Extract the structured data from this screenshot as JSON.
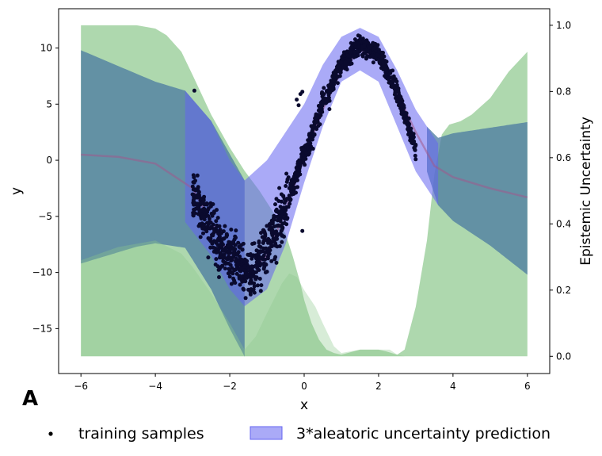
{
  "panel_label": "A",
  "chart_data": {
    "type": "scatter",
    "xlabel": "x",
    "ylabel": "y",
    "y2label": "Epistemic Uncertainty",
    "xlim": [
      -6.6,
      6.6
    ],
    "ylim": [
      -19.0,
      13.5
    ],
    "y2lim": [
      -0.052,
      1.05
    ],
    "xticks": [
      -6,
      -4,
      -2,
      0,
      2,
      4,
      6
    ],
    "yticks": [
      -15,
      -10,
      -5,
      0,
      5,
      10
    ],
    "y2ticks": [
      0.0,
      0.2,
      0.4,
      0.6,
      0.8,
      1.0
    ],
    "tick_labels": {
      "x": [
        "−6",
        "−4",
        "−2",
        "0",
        "2",
        "4",
        "6"
      ],
      "y": [
        "−15",
        "−10",
        "−5",
        "0",
        "5",
        "10"
      ],
      "y2": [
        "0.0",
        "0.2",
        "0.4",
        "0.6",
        "0.8",
        "1.0"
      ]
    },
    "legend": {
      "placement": "bottom",
      "entries": [
        "training samples",
        "3*aleatoric uncertainty prediction"
      ]
    },
    "colors": {
      "samples": "#0a0a2e",
      "aleatoric_band": "#6464f0",
      "epistemic_area": "#8cc88c",
      "mean_line": "#a05a8c"
    },
    "series": [
      {
        "name": "training samples",
        "kind": "scatter",
        "x_range": [
          -3.0,
          3.0
        ],
        "trend_x": [
          -3.0,
          -2.5,
          -2.0,
          -1.5,
          -1.0,
          -0.5,
          0.0,
          0.5,
          1.0,
          1.5,
          2.0,
          2.5,
          3.0
        ],
        "trend_y": [
          -3.0,
          -6.0,
          -8.5,
          -10.0,
          -8.0,
          -4.0,
          0.5,
          5.0,
          8.5,
          10.3,
          9.6,
          6.0,
          1.0
        ],
        "outliers": [
          [
            -2.95,
            6.2
          ],
          [
            -0.2,
            5.4
          ],
          [
            -0.15,
            4.9
          ],
          [
            -0.1,
            5.9
          ],
          [
            -0.05,
            6.1
          ],
          [
            -0.05,
            -6.3
          ]
        ]
      },
      {
        "name": "3*aleatoric uncertainty prediction",
        "kind": "band",
        "x": [
          -3.2,
          -2.5,
          -2.0,
          -1.6,
          -1.0,
          -0.5,
          0.0,
          0.5,
          1.0,
          1.5,
          2.0,
          2.5,
          3.0,
          3.6
        ],
        "y_upper": [
          6.2,
          3.5,
          0.0,
          -1.8,
          0.0,
          2.5,
          5.0,
          8.5,
          11.0,
          11.8,
          11.0,
          8.0,
          4.5,
          1.5
        ],
        "y_lower": [
          -5.5,
          -8.5,
          -11.5,
          -13.0,
          -11.5,
          -7.5,
          -2.0,
          3.0,
          7.0,
          8.0,
          7.0,
          3.0,
          -1.0,
          -4.0
        ]
      },
      {
        "kind": "line",
        "x": [
          -6.0,
          -5.0,
          -4.0,
          -3.0,
          -2.5,
          -2.0,
          -1.5,
          -1.0,
          -0.5,
          0.0,
          0.5,
          1.0,
          1.5,
          2.0,
          2.5,
          3.0,
          3.5,
          4.0,
          5.0,
          6.0
        ],
        "y": [
          0.5,
          0.3,
          -0.3,
          -2.5,
          -5.5,
          -8.5,
          -10.0,
          -8.5,
          -4.5,
          0.3,
          4.5,
          8.0,
          9.8,
          9.2,
          6.0,
          2.5,
          -0.5,
          -1.5,
          -2.5,
          -3.3
        ]
      },
      {
        "kind": "area",
        "axis": "y2",
        "baseline": 0.0,
        "x": [
          -6.0,
          -4.5,
          -4.0,
          -3.7,
          -3.3,
          -3.0,
          -2.5,
          -2.0,
          -1.6,
          -1.2,
          -0.8,
          -0.5,
          -0.3,
          -0.1,
          0.0,
          0.2,
          0.4,
          0.6,
          0.8,
          1.0,
          1.5,
          2.0,
          2.2,
          2.5,
          2.7,
          3.0,
          3.3,
          3.5,
          3.7,
          3.9,
          4.2,
          4.5,
          5.0,
          5.5,
          6.0
        ],
        "y": [
          1.0,
          1.0,
          0.99,
          0.97,
          0.92,
          0.85,
          0.73,
          0.63,
          0.56,
          0.5,
          0.43,
          0.37,
          0.3,
          0.22,
          0.17,
          0.1,
          0.05,
          0.02,
          0.01,
          0.005,
          0.02,
          0.02,
          0.015,
          0.005,
          0.02,
          0.15,
          0.35,
          0.55,
          0.67,
          0.7,
          0.71,
          0.73,
          0.78,
          0.86,
          0.92
        ]
      },
      {
        "kind": "area-lower",
        "axis": "y2",
        "baseline": 0.0,
        "x": [
          -6.0,
          -5.0,
          -4.0,
          -3.3,
          -3.0,
          -2.5,
          -2.0,
          -1.6,
          -1.3,
          -1.0,
          -0.6,
          -0.4,
          -0.2,
          0.0,
          0.3,
          0.5,
          0.8,
          1.0,
          1.5,
          2.0,
          2.3,
          2.5,
          2.7,
          2.9
        ],
        "y": [
          0.29,
          0.33,
          0.35,
          0.31,
          0.27,
          0.19,
          0.1,
          0.02,
          0.06,
          0.13,
          0.22,
          0.25,
          0.24,
          0.2,
          0.15,
          0.1,
          0.03,
          0.01,
          0.02,
          0.02,
          0.02,
          0.005,
          0.0,
          0.0
        ]
      }
    ]
  }
}
